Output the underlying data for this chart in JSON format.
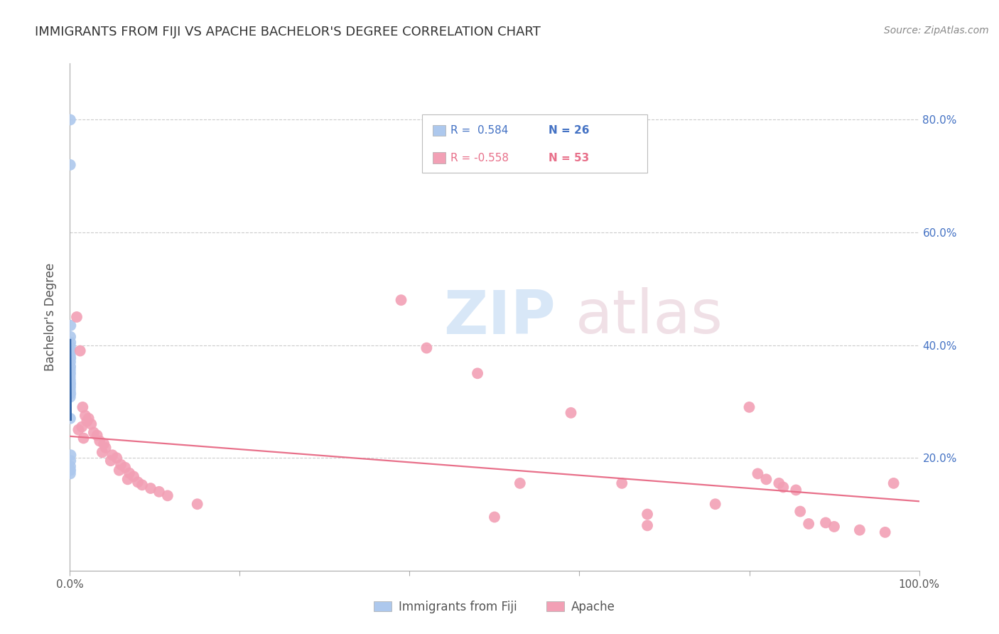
{
  "title": "IMMIGRANTS FROM FIJI VS APACHE BACHELOR'S DEGREE CORRELATION CHART",
  "source": "Source: ZipAtlas.com",
  "ylabel": "Bachelor's Degree",
  "legend_label1": "Immigrants from Fiji",
  "legend_label2": "Apache",
  "r1": "0.584",
  "n1": "26",
  "r2": "-0.558",
  "n2": "53",
  "fiji_color": "#adc8ed",
  "apache_color": "#f2a0b5",
  "fiji_line_color": "#3465a8",
  "apache_line_color": "#e8708a",
  "fiji_points": [
    [
      0.0004,
      0.8
    ],
    [
      0.0003,
      0.72
    ],
    [
      0.0008,
      0.435
    ],
    [
      0.0006,
      0.415
    ],
    [
      0.0007,
      0.405
    ],
    [
      0.0005,
      0.398
    ],
    [
      0.0006,
      0.39
    ],
    [
      0.0004,
      0.383
    ],
    [
      0.0007,
      0.377
    ],
    [
      0.0005,
      0.37
    ],
    [
      0.0006,
      0.362
    ],
    [
      0.0004,
      0.356
    ],
    [
      0.0005,
      0.35
    ],
    [
      0.0003,
      0.344
    ],
    [
      0.0004,
      0.338
    ],
    [
      0.0006,
      0.332
    ],
    [
      0.0005,
      0.326
    ],
    [
      0.0004,
      0.32
    ],
    [
      0.0007,
      0.314
    ],
    [
      0.0003,
      0.308
    ],
    [
      0.0004,
      0.27
    ],
    [
      0.0009,
      0.205
    ],
    [
      0.0007,
      0.195
    ],
    [
      0.0005,
      0.185
    ],
    [
      0.0006,
      0.178
    ],
    [
      0.0004,
      0.172
    ]
  ],
  "apache_points": [
    [
      0.008,
      0.45
    ],
    [
      0.012,
      0.39
    ],
    [
      0.015,
      0.29
    ],
    [
      0.018,
      0.275
    ],
    [
      0.02,
      0.265
    ],
    [
      0.022,
      0.27
    ],
    [
      0.025,
      0.26
    ],
    [
      0.014,
      0.255
    ],
    [
      0.01,
      0.25
    ],
    [
      0.028,
      0.245
    ],
    [
      0.032,
      0.24
    ],
    [
      0.016,
      0.235
    ],
    [
      0.035,
      0.23
    ],
    [
      0.04,
      0.225
    ],
    [
      0.042,
      0.218
    ],
    [
      0.038,
      0.21
    ],
    [
      0.05,
      0.205
    ],
    [
      0.055,
      0.2
    ],
    [
      0.048,
      0.195
    ],
    [
      0.06,
      0.188
    ],
    [
      0.065,
      0.183
    ],
    [
      0.058,
      0.178
    ],
    [
      0.07,
      0.173
    ],
    [
      0.075,
      0.167
    ],
    [
      0.068,
      0.162
    ],
    [
      0.08,
      0.157
    ],
    [
      0.085,
      0.152
    ],
    [
      0.095,
      0.146
    ],
    [
      0.105,
      0.14
    ],
    [
      0.115,
      0.133
    ],
    [
      0.15,
      0.118
    ],
    [
      0.39,
      0.48
    ],
    [
      0.42,
      0.395
    ],
    [
      0.48,
      0.35
    ],
    [
      0.5,
      0.095
    ],
    [
      0.53,
      0.155
    ],
    [
      0.59,
      0.28
    ],
    [
      0.65,
      0.155
    ],
    [
      0.68,
      0.1
    ],
    [
      0.68,
      0.08
    ],
    [
      0.76,
      0.118
    ],
    [
      0.8,
      0.29
    ],
    [
      0.81,
      0.172
    ],
    [
      0.82,
      0.162
    ],
    [
      0.835,
      0.155
    ],
    [
      0.84,
      0.148
    ],
    [
      0.855,
      0.143
    ],
    [
      0.86,
      0.105
    ],
    [
      0.87,
      0.083
    ],
    [
      0.89,
      0.085
    ],
    [
      0.9,
      0.078
    ],
    [
      0.93,
      0.072
    ],
    [
      0.96,
      0.068
    ],
    [
      0.97,
      0.155
    ]
  ],
  "xlim": [
    0.0,
    1.0
  ],
  "ylim": [
    0.0,
    0.9
  ],
  "yticks": [
    0.2,
    0.4,
    0.6,
    0.8
  ],
  "ytick_labels": [
    "20.0%",
    "40.0%",
    "60.0%",
    "80.0%"
  ],
  "xtick_labels_left": "0.0%",
  "xtick_labels_right": "100.0%"
}
